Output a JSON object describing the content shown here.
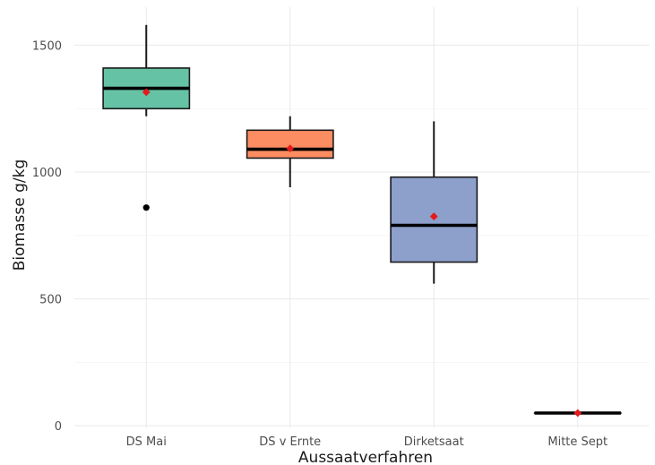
{
  "chart_data": {
    "type": "box",
    "title": "",
    "xlabel": "Aussaatverfahren",
    "ylabel": "Biomasse g/kg",
    "ylim": [
      -10,
      1650
    ],
    "yticks": [
      0,
      500,
      1000,
      1500
    ],
    "grid": true,
    "legend": "none",
    "categories": [
      "DS Mai",
      "DS v Ernte",
      "Dirketsaat",
      "Mitte Sept"
    ],
    "boxes": [
      {
        "category": "DS Mai",
        "whisker_low": 1220,
        "q1": 1250,
        "median": 1330,
        "q3": 1410,
        "whisker_high": 1580,
        "mean": 1315,
        "outliers": [
          860
        ],
        "color": "#66c2a5"
      },
      {
        "category": "DS v Ernte",
        "whisker_low": 940,
        "q1": 1055,
        "median": 1090,
        "q3": 1165,
        "whisker_high": 1220,
        "mean": 1093,
        "outliers": [],
        "color": "#fc8d62"
      },
      {
        "category": "Dirketsaat",
        "whisker_low": 560,
        "q1": 645,
        "median": 790,
        "q3": 980,
        "whisker_high": 1200,
        "mean": 825,
        "outliers": [],
        "color": "#8da0cb"
      },
      {
        "category": "Mitte Sept",
        "whisker_low": 50,
        "q1": 50,
        "median": 50,
        "q3": 50,
        "whisker_high": 50,
        "mean": 50,
        "outliers": [],
        "color": "#e78ac3"
      }
    ],
    "mean_marker_color": "#e41a1c"
  }
}
